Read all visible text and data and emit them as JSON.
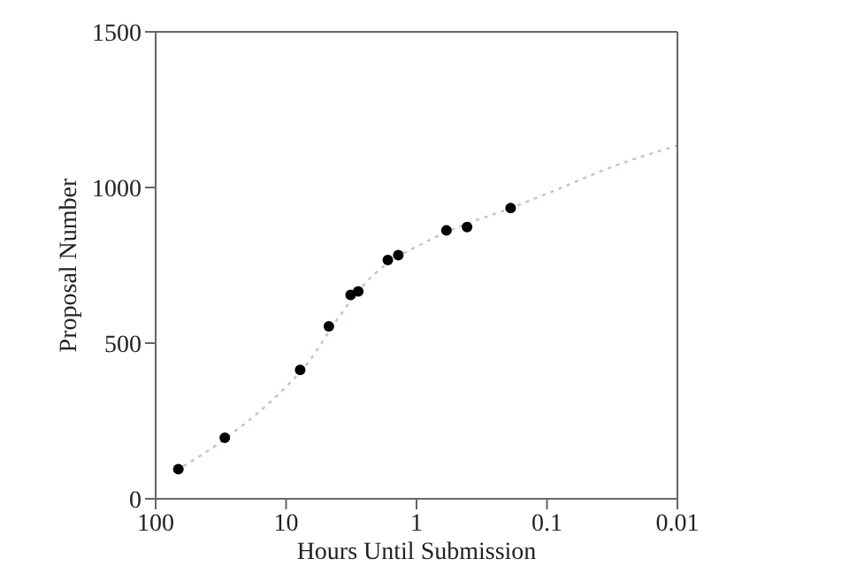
{
  "chart_data": {
    "type": "scatter",
    "xlabel": "Hours Until Submission",
    "ylabel": "Proposal Number",
    "log": "x",
    "xlim": [
      100,
      0.01
    ],
    "xticks": [
      100,
      10,
      1,
      0.1,
      0.01
    ],
    "ylim": [
      0,
      1500
    ],
    "yticks": [
      0,
      500,
      1000,
      1500
    ],
    "grid": false,
    "legend": false,
    "series": [
      {
        "color": "#000000",
        "marker": "circle",
        "x": [
          67,
          29.5,
          7.8,
          4.7,
          3.2,
          2.8,
          1.66,
          1.38,
          0.59,
          0.41,
          0.19
        ],
        "values": [
          95,
          196,
          414,
          554,
          655,
          666,
          767,
          783,
          862,
          873,
          934
        ]
      },
      {
        "type": "line",
        "color": "#d8b8c0",
        "line_style": "dotted",
        "marker": "none",
        "x": [
          70,
          30,
          10,
          7,
          4,
          2.5,
          1.5,
          1,
          0.5,
          0.2,
          0.1,
          0.03,
          0.01
        ],
        "values": [
          90,
          190,
          360,
          430,
          580,
          690,
          770,
          810,
          870,
          930,
          980,
          1070,
          1135
        ]
      }
    ]
  }
}
